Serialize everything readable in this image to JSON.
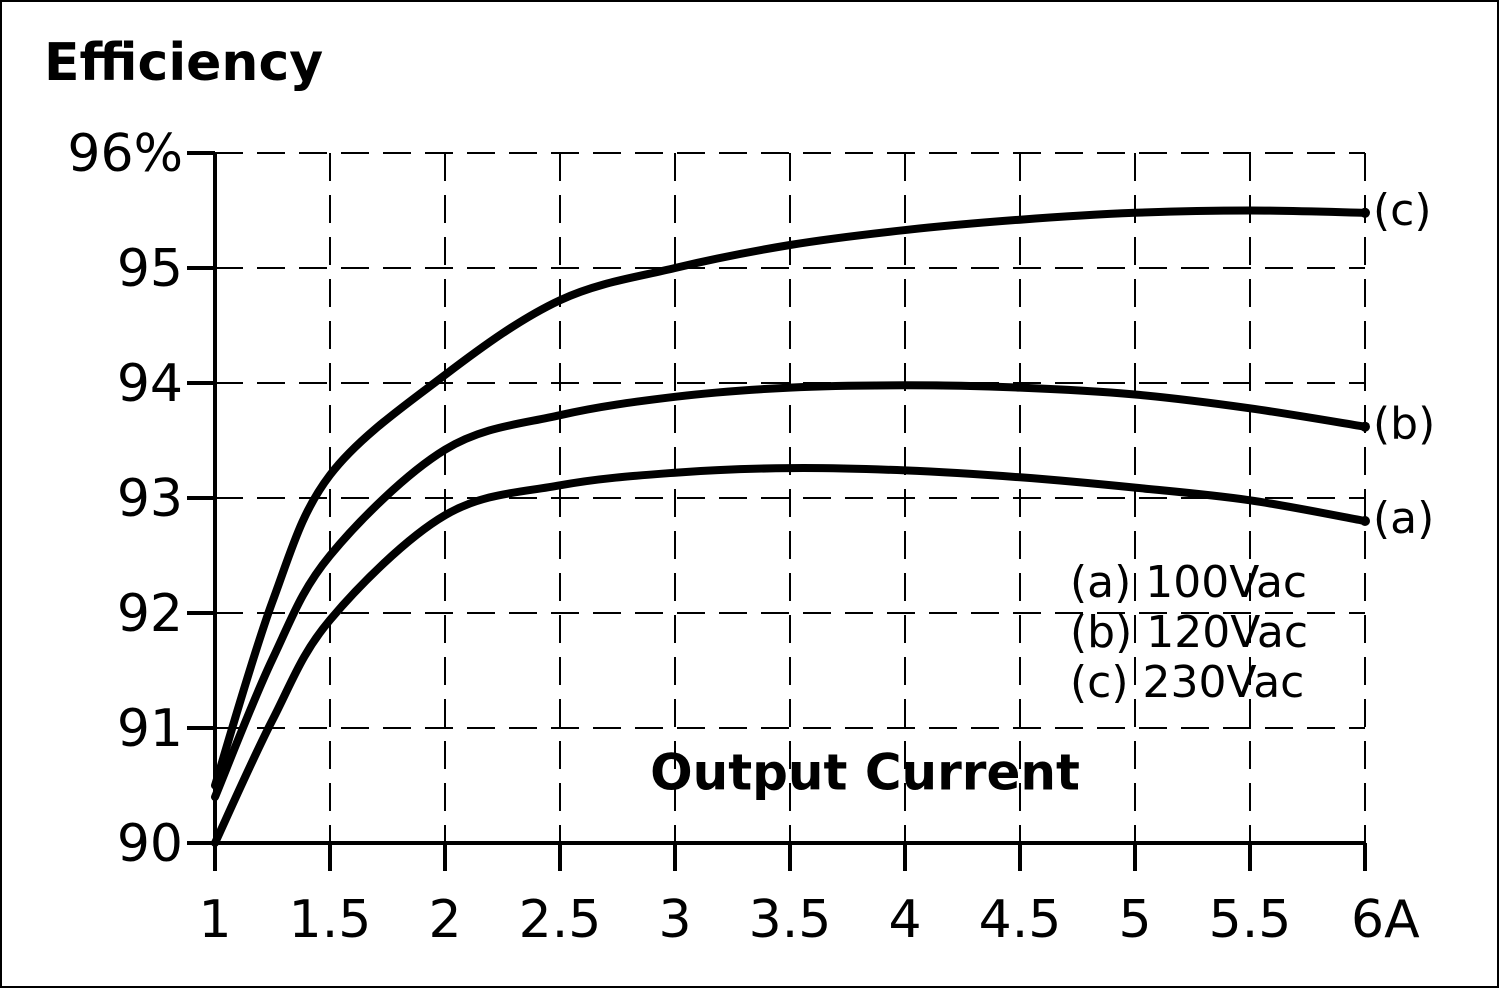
{
  "chart_data": {
    "type": "line",
    "title": "Efficiency",
    "x_label": "Output Current",
    "x": [
      1,
      1.25,
      1.5,
      2,
      2.5,
      3,
      3.5,
      4,
      4.5,
      5,
      5.5,
      6
    ],
    "series": [
      {
        "name": "(a)",
        "description": "100Vac",
        "color": "#000000",
        "values": [
          90.0,
          91.07,
          91.94,
          92.85,
          93.11,
          93.22,
          93.26,
          93.24,
          93.18,
          93.09,
          92.98,
          92.8
        ]
      },
      {
        "name": "(b)",
        "description": "120Vac",
        "color": "#000000",
        "values": [
          90.4,
          91.6,
          92.5,
          93.42,
          93.72,
          93.88,
          93.96,
          93.98,
          93.96,
          93.9,
          93.78,
          93.62
        ]
      },
      {
        "name": "(c)",
        "description": "230Vac",
        "color": "#000000",
        "values": [
          90.5,
          92.1,
          93.2,
          94.07,
          94.72,
          95.0,
          95.2,
          95.33,
          95.42,
          95.48,
          95.5,
          95.48
        ]
      }
    ],
    "xlim": [
      1,
      6
    ],
    "xticks": [
      1,
      1.5,
      2,
      2.5,
      3,
      3.5,
      4,
      4.5,
      5,
      5.5,
      {
        "value": 6,
        "label": "6A"
      }
    ],
    "ylim": [
      90,
      96
    ],
    "yticks": [
      90,
      91,
      92,
      93,
      94,
      95,
      {
        "value": 96,
        "label": "96%"
      }
    ],
    "grid": true
  }
}
